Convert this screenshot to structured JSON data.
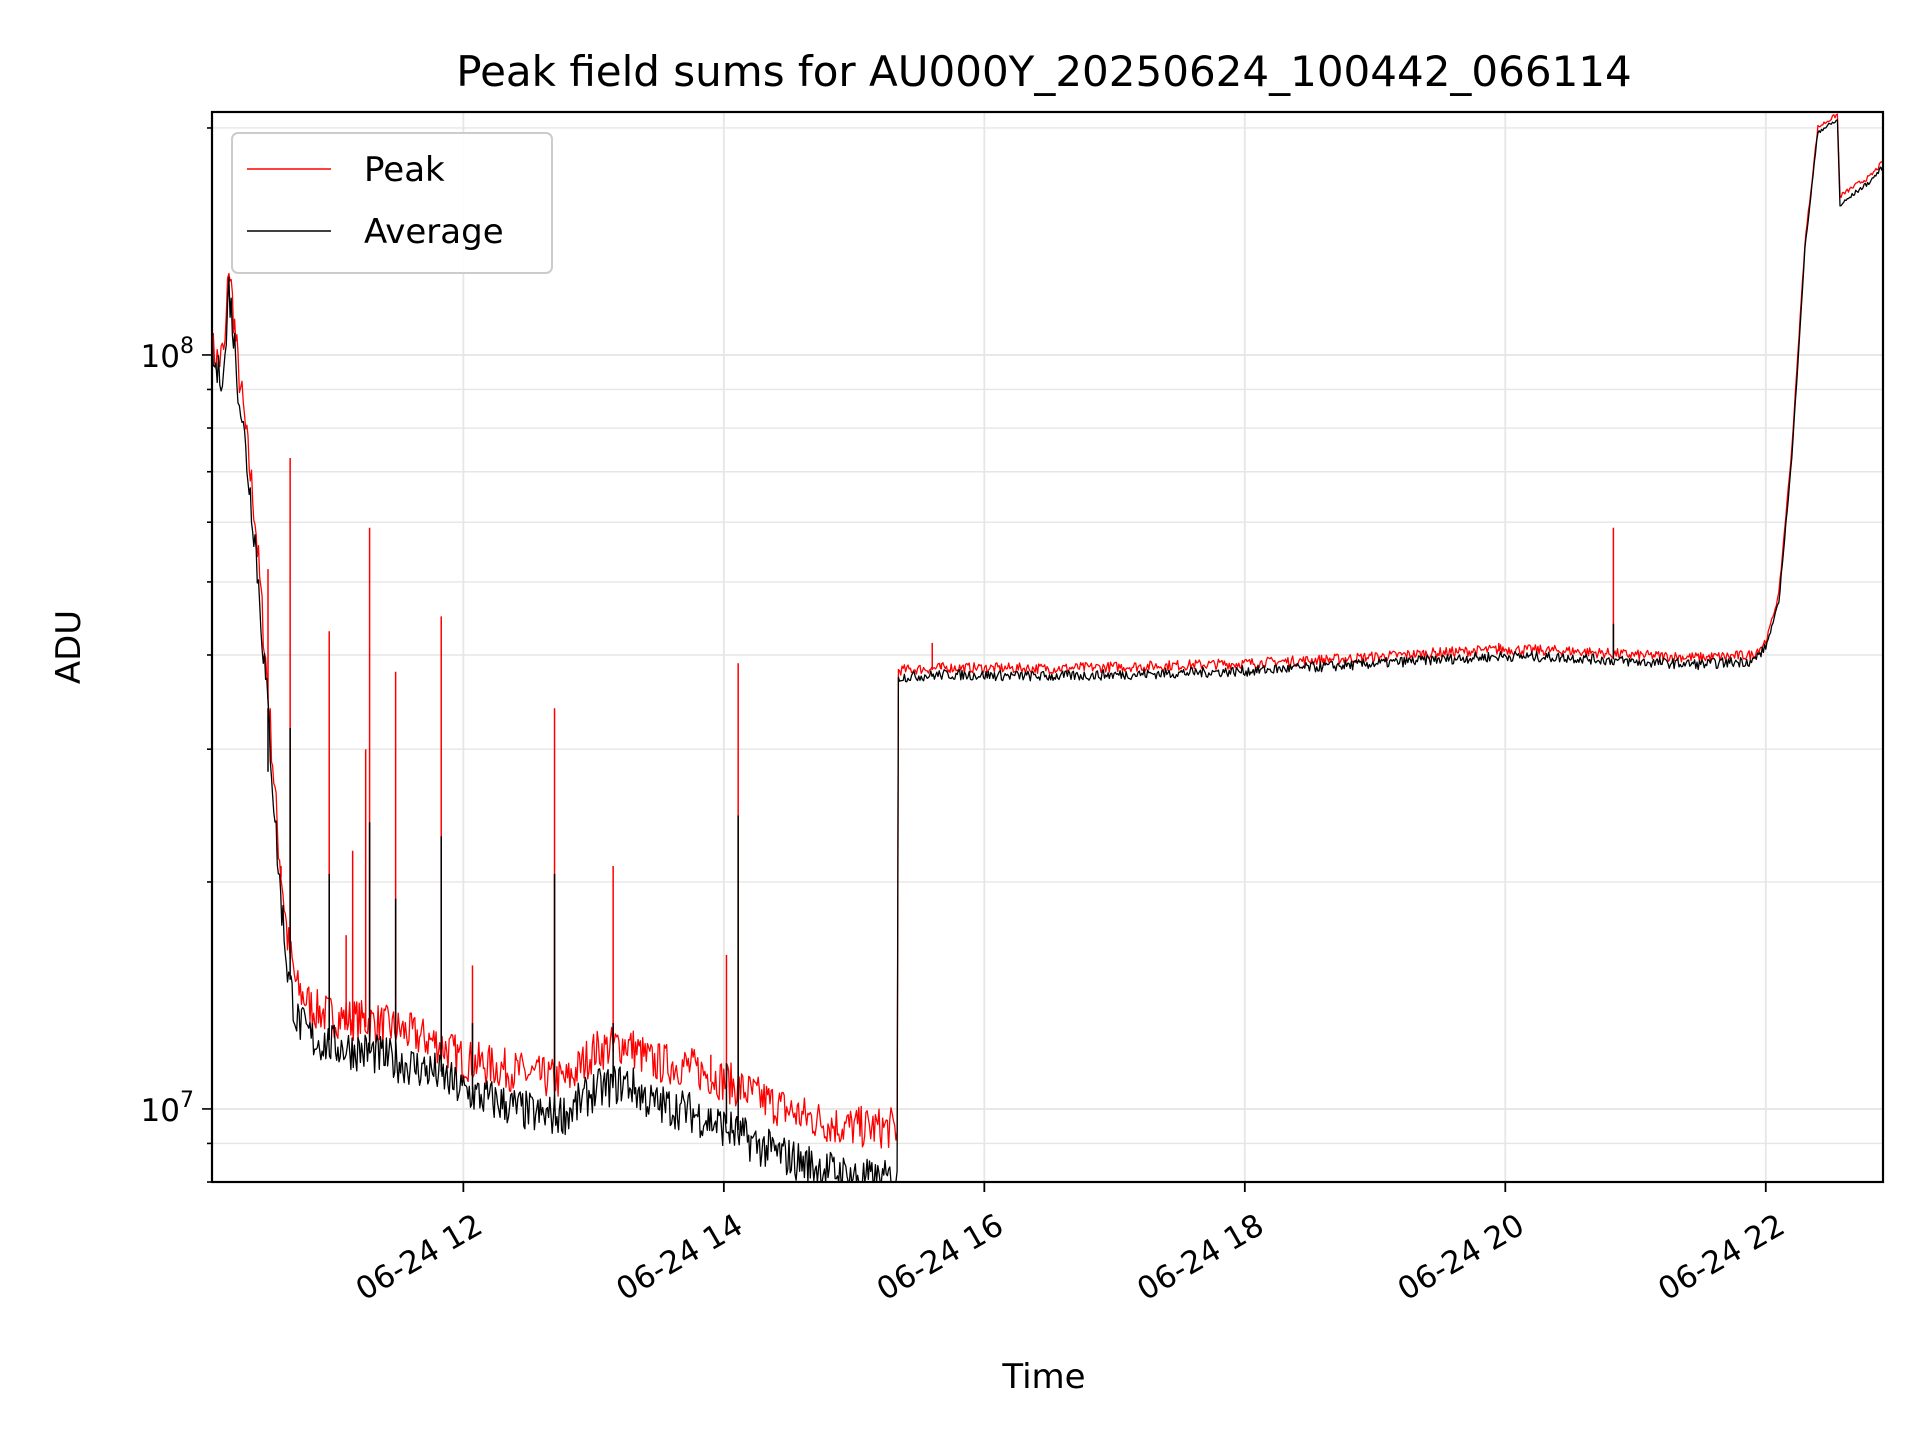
{
  "chart_data": {
    "type": "line",
    "title": "Peak field sums for AU000Y_20250624_100442_066114",
    "xlabel": "Time",
    "ylabel": "ADU",
    "x_unit": "2025-06-24 time of day (hours)",
    "xlim": [
      10.07,
      22.9
    ],
    "ylim": [
      8000000,
      210000000
    ],
    "yscale": "log",
    "grid": true,
    "legend_position": "top-left",
    "x_ticks": [
      {
        "value": 12,
        "label": "06-24 12"
      },
      {
        "value": 14,
        "label": "06-24 14"
      },
      {
        "value": 16,
        "label": "06-24 16"
      },
      {
        "value": 18,
        "label": "06-24 18"
      },
      {
        "value": 20,
        "label": "06-24 20"
      },
      {
        "value": 22,
        "label": "06-24 22"
      }
    ],
    "y_ticks": [
      {
        "value": 10000000,
        "base": "10",
        "exp": "7"
      },
      {
        "value": 100000000,
        "base": "10",
        "exp": "8"
      }
    ],
    "series": [
      {
        "name": "Peak",
        "color": "#ff0000",
        "points": [
          [
            10.07,
            100000000
          ],
          [
            10.12,
            96000000
          ],
          [
            10.17,
            100000000
          ],
          [
            10.2,
            130000000
          ],
          [
            10.27,
            95000000
          ],
          [
            10.32,
            80000000
          ],
          [
            10.4,
            60000000
          ],
          [
            10.5,
            35000000
          ],
          [
            10.58,
            22000000
          ],
          [
            10.65,
            16500000
          ],
          [
            10.72,
            14200000
          ],
          [
            10.85,
            13300000
          ],
          [
            11.0,
            13000000
          ],
          [
            11.3,
            12800000
          ],
          [
            11.5,
            12500000
          ],
          [
            11.8,
            12000000
          ],
          [
            12.0,
            11400000
          ],
          [
            12.3,
            11100000
          ],
          [
            12.6,
            10800000
          ],
          [
            12.8,
            10700000
          ],
          [
            13.0,
            11700000
          ],
          [
            13.25,
            12000000
          ],
          [
            13.45,
            11300000
          ],
          [
            13.7,
            11200000
          ],
          [
            14.0,
            10700000
          ],
          [
            14.3,
            10100000
          ],
          [
            14.6,
            9600000
          ],
          [
            14.9,
            9300000
          ],
          [
            15.2,
            9250000
          ],
          [
            15.33,
            9250000
          ],
          [
            15.34,
            38000000
          ],
          [
            15.7,
            38300000
          ],
          [
            16.5,
            38200000
          ],
          [
            17.3,
            38500000
          ],
          [
            18.0,
            38800000
          ],
          [
            18.8,
            39400000
          ],
          [
            19.5,
            40100000
          ],
          [
            20.0,
            40500000
          ],
          [
            20.5,
            40300000
          ],
          [
            21.0,
            39800000
          ],
          [
            21.5,
            39500000
          ],
          [
            21.9,
            39800000
          ],
          [
            22.0,
            41500000
          ],
          [
            22.1,
            48000000
          ],
          [
            22.2,
            75000000
          ],
          [
            22.3,
            140000000
          ],
          [
            22.4,
            200000000
          ],
          [
            22.55,
            208000000
          ],
          [
            22.57,
            162000000
          ],
          [
            22.7,
            168000000
          ],
          [
            22.8,
            172000000
          ],
          [
            22.9,
            180000000
          ]
        ],
        "spikes": [
          [
            10.5,
            52000000
          ],
          [
            10.6,
            21000000
          ],
          [
            10.67,
            73000000
          ],
          [
            10.97,
            43000000
          ],
          [
            11.1,
            17000000
          ],
          [
            11.15,
            22000000
          ],
          [
            11.25,
            30000000
          ],
          [
            11.28,
            59000000
          ],
          [
            11.48,
            38000000
          ],
          [
            11.83,
            45000000
          ],
          [
            12.07,
            15500000
          ],
          [
            12.7,
            34000000
          ],
          [
            13.15,
            21000000
          ],
          [
            13.9,
            11800000
          ],
          [
            14.02,
            16000000
          ],
          [
            14.11,
            39000000
          ],
          [
            15.6,
            41500000
          ],
          [
            15.67,
            39000000
          ],
          [
            19.95,
            41500000
          ],
          [
            20.83,
            59000000
          ]
        ]
      },
      {
        "name": "Average",
        "color": "#000000",
        "points": [
          [
            10.07,
            100000000
          ],
          [
            10.12,
            95000000
          ],
          [
            10.17,
            99000000
          ],
          [
            10.2,
            125000000
          ],
          [
            10.27,
            93000000
          ],
          [
            10.32,
            78000000
          ],
          [
            10.4,
            58000000
          ],
          [
            10.5,
            34000000
          ],
          [
            10.58,
            21000000
          ],
          [
            10.65,
            15500000
          ],
          [
            10.72,
            13300000
          ],
          [
            10.85,
            12500000
          ],
          [
            11.0,
            12300000
          ],
          [
            11.3,
            12000000
          ],
          [
            11.5,
            11700000
          ],
          [
            11.8,
            11300000
          ],
          [
            12.0,
            10700000
          ],
          [
            12.3,
            10300000
          ],
          [
            12.6,
            9900000
          ],
          [
            12.8,
            10000000
          ],
          [
            13.0,
            10700000
          ],
          [
            13.25,
            11000000
          ],
          [
            13.45,
            10300000
          ],
          [
            13.7,
            10100000
          ],
          [
            14.0,
            9600000
          ],
          [
            14.3,
            9000000
          ],
          [
            14.6,
            8600000
          ],
          [
            14.9,
            8300000
          ],
          [
            15.2,
            8100000
          ],
          [
            15.33,
            8200000
          ],
          [
            15.34,
            37500000
          ],
          [
            15.7,
            37800000
          ],
          [
            16.5,
            37600000
          ],
          [
            17.3,
            37900000
          ],
          [
            18.0,
            38200000
          ],
          [
            18.8,
            38900000
          ],
          [
            19.5,
            39600000
          ],
          [
            20.0,
            40000000
          ],
          [
            20.5,
            39800000
          ],
          [
            21.0,
            39300000
          ],
          [
            21.5,
            39000000
          ],
          [
            21.9,
            39400000
          ],
          [
            22.0,
            41000000
          ],
          [
            22.1,
            47000000
          ],
          [
            22.2,
            73000000
          ],
          [
            22.3,
            138000000
          ],
          [
            22.4,
            198000000
          ],
          [
            22.55,
            205000000
          ],
          [
            22.57,
            158000000
          ],
          [
            22.7,
            165000000
          ],
          [
            22.8,
            170000000
          ],
          [
            22.9,
            178000000
          ]
        ],
        "spikes": [
          [
            10.5,
            28000000
          ],
          [
            10.67,
            32000000
          ],
          [
            10.97,
            20500000
          ],
          [
            11.28,
            24000000
          ],
          [
            11.48,
            19000000
          ],
          [
            11.83,
            23000000
          ],
          [
            12.07,
            13000000
          ],
          [
            12.7,
            20500000
          ],
          [
            13.15,
            13000000
          ],
          [
            14.02,
            11500000
          ],
          [
            14.11,
            24500000
          ],
          [
            20.83,
            44000000
          ]
        ]
      }
    ]
  }
}
